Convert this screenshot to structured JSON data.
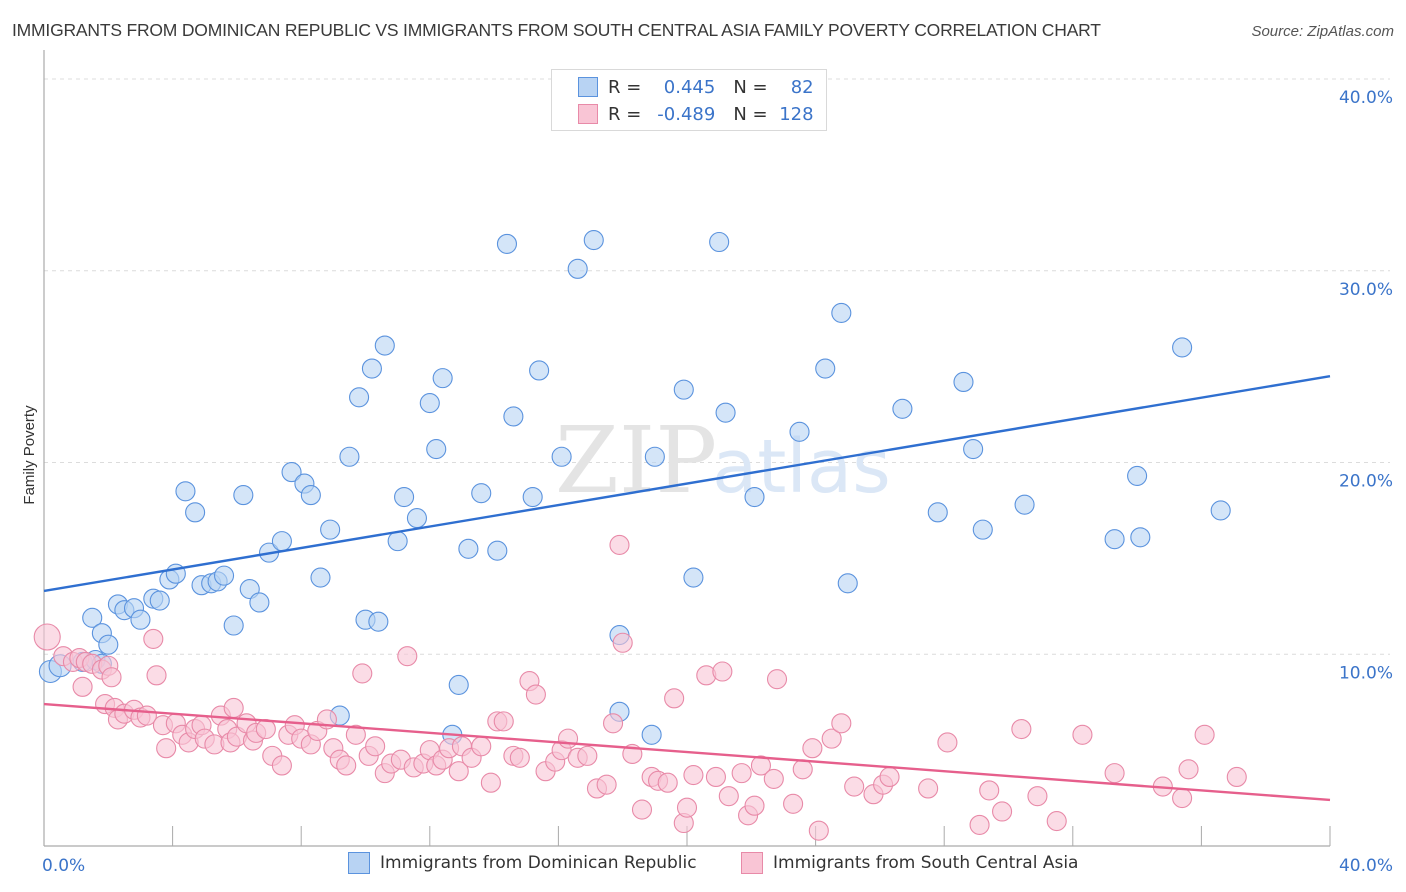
{
  "header": {
    "title": "IMMIGRANTS FROM DOMINICAN REPUBLIC VS IMMIGRANTS FROM SOUTH CENTRAL ASIA FAMILY POVERTY CORRELATION CHART",
    "source": "Source: ZipAtlas.com"
  },
  "watermark": {
    "zip": "ZIP",
    "atlas": "atlas"
  },
  "legend": {
    "rows": [
      {
        "r_label": "R =",
        "r_value": "0.445",
        "n_label": "N =",
        "n_value": "82"
      },
      {
        "r_label": "R =",
        "r_value": "-0.489",
        "n_label": "N =",
        "n_value": "128"
      }
    ]
  },
  "colors": {
    "blue_fill": "#b8d3f3",
    "blue_stroke": "#5b93de",
    "blue_line": "#2f6fd0",
    "pink_fill": "#f9c5d5",
    "pink_stroke": "#e88aa8",
    "pink_line": "#e65f8c",
    "tick_text": "#3b74c9"
  },
  "chart_data": {
    "type": "scatter",
    "title": "IMMIGRANTS FROM DOMINICAN REPUBLIC VS IMMIGRANTS FROM SOUTH CENTRAL ASIA FAMILY POVERTY CORRELATION CHART",
    "xlabel": "",
    "ylabel": "Family Poverty",
    "xlim": [
      0,
      40
    ],
    "ylim": [
      0,
      40
    ],
    "x_tick_labels": [
      "0.0%",
      "40.0%"
    ],
    "y_tick_labels": [
      "10.0%",
      "20.0%",
      "30.0%",
      "40.0%"
    ],
    "y_ticks": [
      10,
      20,
      30,
      40
    ],
    "x_minor_ticks": [
      0,
      4,
      8,
      12,
      16,
      20,
      24,
      28,
      32,
      36,
      40
    ],
    "grid": true,
    "legend_position": "top-center",
    "series": [
      {
        "name": "Immigrants from Dominican Republic",
        "color": "blue",
        "R": 0.445,
        "N": 82,
        "trend": {
          "x": [
            0,
            40
          ],
          "y": [
            13.3,
            24.5
          ]
        },
        "points": [
          [
            0.2,
            9.1
          ],
          [
            0.5,
            9.4
          ],
          [
            1.2,
            9.6
          ],
          [
            1.6,
            9.7
          ],
          [
            1.8,
            9.5
          ],
          [
            1.5,
            11.9
          ],
          [
            1.8,
            11.1
          ],
          [
            2.0,
            10.5
          ],
          [
            2.3,
            12.6
          ],
          [
            2.5,
            12.3
          ],
          [
            2.8,
            12.4
          ],
          [
            3.0,
            11.8
          ],
          [
            3.4,
            12.9
          ],
          [
            3.6,
            12.8
          ],
          [
            3.9,
            13.9
          ],
          [
            4.1,
            14.2
          ],
          [
            4.4,
            18.5
          ],
          [
            4.7,
            17.4
          ],
          [
            4.9,
            13.6
          ],
          [
            5.2,
            13.7
          ],
          [
            5.4,
            13.8
          ],
          [
            5.6,
            14.1
          ],
          [
            5.9,
            11.5
          ],
          [
            6.2,
            18.3
          ],
          [
            6.4,
            13.4
          ],
          [
            6.7,
            12.7
          ],
          [
            7.0,
            15.3
          ],
          [
            7.4,
            15.9
          ],
          [
            7.7,
            19.5
          ],
          [
            8.1,
            18.9
          ],
          [
            8.3,
            18.3
          ],
          [
            8.6,
            14.0
          ],
          [
            8.9,
            16.5
          ],
          [
            9.2,
            6.8
          ],
          [
            9.5,
            20.3
          ],
          [
            9.8,
            23.4
          ],
          [
            10.2,
            24.9
          ],
          [
            10.0,
            11.8
          ],
          [
            10.4,
            11.7
          ],
          [
            10.6,
            26.1
          ],
          [
            11.0,
            15.9
          ],
          [
            11.2,
            18.2
          ],
          [
            11.6,
            17.1
          ],
          [
            12.0,
            23.1
          ],
          [
            12.2,
            20.7
          ],
          [
            12.4,
            24.4
          ],
          [
            12.7,
            5.8
          ],
          [
            12.9,
            8.4
          ],
          [
            13.2,
            15.5
          ],
          [
            13.6,
            18.4
          ],
          [
            14.1,
            15.4
          ],
          [
            14.4,
            31.4
          ],
          [
            14.6,
            22.4
          ],
          [
            15.2,
            18.2
          ],
          [
            15.4,
            24.8
          ],
          [
            16.1,
            20.3
          ],
          [
            16.6,
            30.1
          ],
          [
            17.1,
            31.6
          ],
          [
            17.9,
            7.0
          ],
          [
            17.9,
            11.0
          ],
          [
            18.9,
            5.8
          ],
          [
            19.0,
            20.3
          ],
          [
            19.9,
            23.8
          ],
          [
            20.2,
            14.0
          ],
          [
            21.0,
            31.5
          ],
          [
            21.2,
            22.6
          ],
          [
            22.1,
            18.2
          ],
          [
            23.5,
            21.6
          ],
          [
            24.3,
            24.9
          ],
          [
            24.8,
            27.8
          ],
          [
            25.0,
            13.7
          ],
          [
            26.7,
            22.8
          ],
          [
            27.8,
            17.4
          ],
          [
            28.6,
            24.2
          ],
          [
            28.9,
            20.7
          ],
          [
            29.2,
            16.5
          ],
          [
            30.5,
            17.8
          ],
          [
            33.3,
            16.0
          ],
          [
            34.0,
            19.3
          ],
          [
            34.1,
            16.1
          ],
          [
            35.4,
            26.0
          ],
          [
            36.6,
            17.5
          ]
        ]
      },
      {
        "name": "Immigrants from South Central Asia",
        "color": "pink",
        "R": -0.489,
        "N": 128,
        "trend": {
          "x": [
            0,
            40
          ],
          "y": [
            7.4,
            2.4
          ]
        },
        "points": [
          [
            0.1,
            10.9
          ],
          [
            0.6,
            9.9
          ],
          [
            0.9,
            9.6
          ],
          [
            1.1,
            9.8
          ],
          [
            1.3,
            9.6
          ],
          [
            1.5,
            9.5
          ],
          [
            1.8,
            9.2
          ],
          [
            2.0,
            9.4
          ],
          [
            1.2,
            8.3
          ],
          [
            1.9,
            7.4
          ],
          [
            2.1,
            8.8
          ],
          [
            2.2,
            7.2
          ],
          [
            2.3,
            6.6
          ],
          [
            2.5,
            6.9
          ],
          [
            2.8,
            7.1
          ],
          [
            3.0,
            6.7
          ],
          [
            3.2,
            6.8
          ],
          [
            3.5,
            8.9
          ],
          [
            3.4,
            10.8
          ],
          [
            3.7,
            6.3
          ],
          [
            3.8,
            5.1
          ],
          [
            4.1,
            6.4
          ],
          [
            4.3,
            5.8
          ],
          [
            4.5,
            5.4
          ],
          [
            4.7,
            6.1
          ],
          [
            4.9,
            6.3
          ],
          [
            5.0,
            5.6
          ],
          [
            5.3,
            5.3
          ],
          [
            5.5,
            6.8
          ],
          [
            5.7,
            6.1
          ],
          [
            5.8,
            5.4
          ],
          [
            5.9,
            7.2
          ],
          [
            6.0,
            5.7
          ],
          [
            6.3,
            6.4
          ],
          [
            6.5,
            5.5
          ],
          [
            6.6,
            5.9
          ],
          [
            6.9,
            6.1
          ],
          [
            7.1,
            4.7
          ],
          [
            7.4,
            4.2
          ],
          [
            7.6,
            5.8
          ],
          [
            7.8,
            6.3
          ],
          [
            8.0,
            5.6
          ],
          [
            8.3,
            5.3
          ],
          [
            8.5,
            6.0
          ],
          [
            8.8,
            6.6
          ],
          [
            9.0,
            5.1
          ],
          [
            9.2,
            4.5
          ],
          [
            9.4,
            4.2
          ],
          [
            9.7,
            5.8
          ],
          [
            9.9,
            9.0
          ],
          [
            10.1,
            4.7
          ],
          [
            10.3,
            5.2
          ],
          [
            10.6,
            3.8
          ],
          [
            10.8,
            4.3
          ],
          [
            11.1,
            4.5
          ],
          [
            11.3,
            9.9
          ],
          [
            11.5,
            4.1
          ],
          [
            11.8,
            4.3
          ],
          [
            12.0,
            5.0
          ],
          [
            12.2,
            4.2
          ],
          [
            12.4,
            4.5
          ],
          [
            12.6,
            5.1
          ],
          [
            12.9,
            3.9
          ],
          [
            13.0,
            5.2
          ],
          [
            13.3,
            4.6
          ],
          [
            13.6,
            5.2
          ],
          [
            13.9,
            3.3
          ],
          [
            14.1,
            6.5
          ],
          [
            14.3,
            6.5
          ],
          [
            14.6,
            4.7
          ],
          [
            14.8,
            4.6
          ],
          [
            15.1,
            8.6
          ],
          [
            15.3,
            7.9
          ],
          [
            15.6,
            3.9
          ],
          [
            15.9,
            4.4
          ],
          [
            16.1,
            5.0
          ],
          [
            16.3,
            5.6
          ],
          [
            16.6,
            4.6
          ],
          [
            16.9,
            4.7
          ],
          [
            17.2,
            3.0
          ],
          [
            17.5,
            3.2
          ],
          [
            17.7,
            6.4
          ],
          [
            17.9,
            15.7
          ],
          [
            18.0,
            10.6
          ],
          [
            18.3,
            4.8
          ],
          [
            18.6,
            1.9
          ],
          [
            18.9,
            3.6
          ],
          [
            19.1,
            3.4
          ],
          [
            19.4,
            3.3
          ],
          [
            19.6,
            7.7
          ],
          [
            19.9,
            1.2
          ],
          [
            20.0,
            2.0
          ],
          [
            20.2,
            3.7
          ],
          [
            20.6,
            8.9
          ],
          [
            20.9,
            3.6
          ],
          [
            21.1,
            9.1
          ],
          [
            21.3,
            2.6
          ],
          [
            21.7,
            3.8
          ],
          [
            21.9,
            1.6
          ],
          [
            22.1,
            2.1
          ],
          [
            22.3,
            4.2
          ],
          [
            22.7,
            3.5
          ],
          [
            22.8,
            8.7
          ],
          [
            23.3,
            2.2
          ],
          [
            23.6,
            4.0
          ],
          [
            23.9,
            5.1
          ],
          [
            24.1,
            0.8
          ],
          [
            24.5,
            5.6
          ],
          [
            24.8,
            6.4
          ],
          [
            25.2,
            3.1
          ],
          [
            25.8,
            2.7
          ],
          [
            26.1,
            3.2
          ],
          [
            26.3,
            3.6
          ],
          [
            27.5,
            3.0
          ],
          [
            28.1,
            5.4
          ],
          [
            29.1,
            1.1
          ],
          [
            29.4,
            2.9
          ],
          [
            29.8,
            1.8
          ],
          [
            30.4,
            6.1
          ],
          [
            30.9,
            2.6
          ],
          [
            31.5,
            1.3
          ],
          [
            32.3,
            5.8
          ],
          [
            33.3,
            3.8
          ],
          [
            34.8,
            3.1
          ],
          [
            35.4,
            2.5
          ],
          [
            35.6,
            4.0
          ],
          [
            36.1,
            5.8
          ],
          [
            37.1,
            3.6
          ]
        ]
      }
    ]
  },
  "bottom_legend": {
    "items": [
      {
        "label": "Immigrants from Dominican Republic"
      },
      {
        "label": "Immigrants from South Central Asia"
      }
    ]
  }
}
